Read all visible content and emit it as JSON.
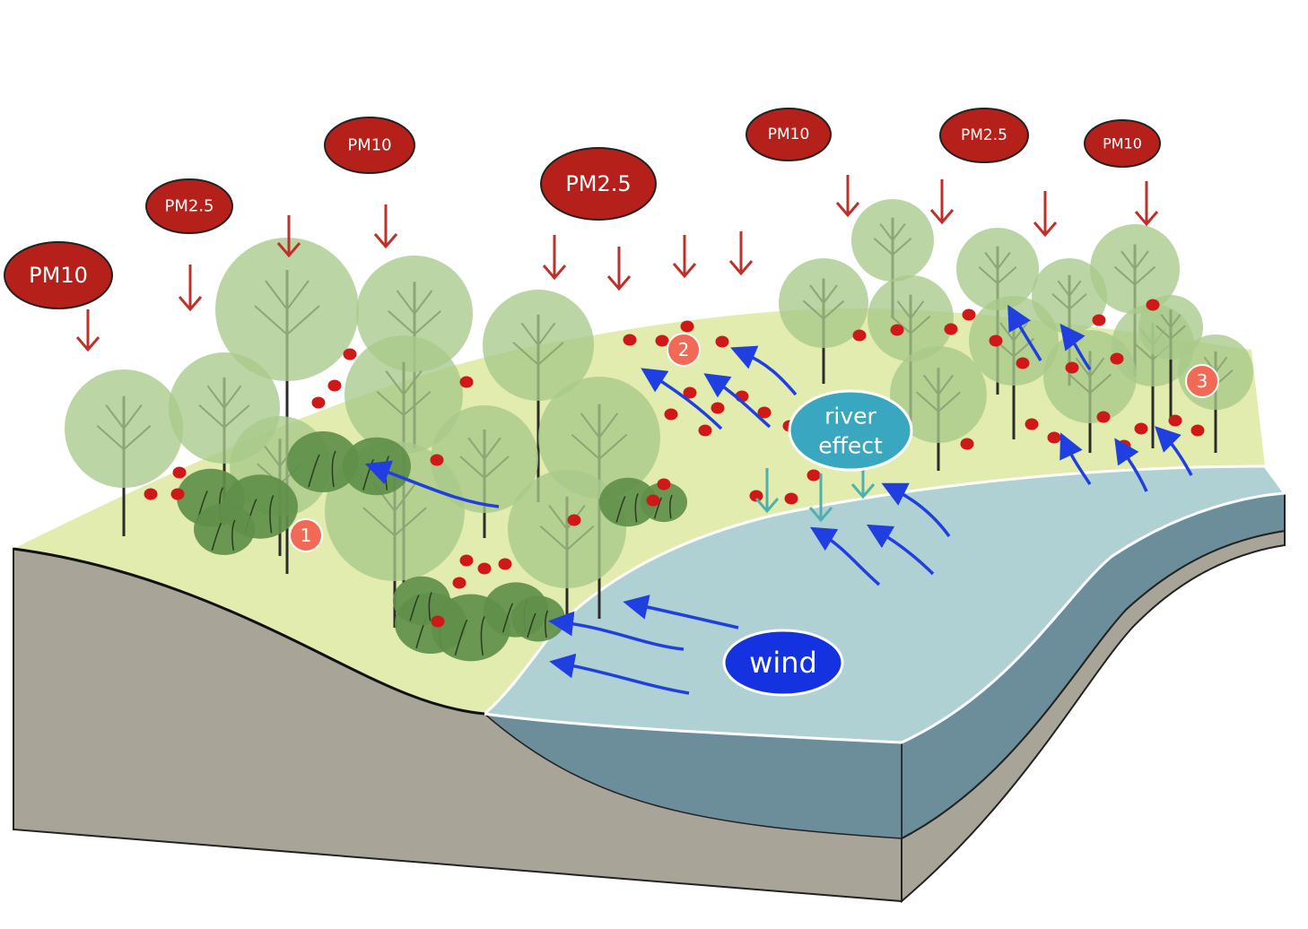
{
  "pollutant_labels": [
    {
      "id": "pm10-far-left",
      "text": "PM10"
    },
    {
      "id": "pm25-left",
      "text": "PM2.5"
    },
    {
      "id": "pm10-left-center",
      "text": "PM10"
    },
    {
      "id": "pm25-center",
      "text": "PM2.5"
    },
    {
      "id": "pm10-center-right",
      "text": "PM10"
    },
    {
      "id": "pm25-right",
      "text": "PM2.5"
    },
    {
      "id": "pm10-far-right",
      "text": "PM10"
    }
  ],
  "site_markers": [
    {
      "id": "site-1",
      "text": "1"
    },
    {
      "id": "site-2",
      "text": "2"
    },
    {
      "id": "site-3",
      "text": "3"
    }
  ],
  "river_effect": {
    "line1": "river",
    "line2": "effect"
  },
  "wind": {
    "text": "wind"
  },
  "colors": {
    "pollutant_bubble": "#b5201a",
    "deposition_arrow": "#c0302a",
    "particle": "#d01818",
    "wind_arrow": "#1f3fe0",
    "river_effect_bubble": "#3aa7c0",
    "river_effect_arrow": "#4fb0b0",
    "wind_bubble": "#1432e0",
    "site_marker": "#f06a55",
    "ground_green": "#e2ecae",
    "river_surface": "#b0d1d3",
    "river_side": "#6b8e9a",
    "soil": "#a8a498",
    "tree_canopy": "#a8c98a",
    "shrub": "#5f8f4a"
  }
}
